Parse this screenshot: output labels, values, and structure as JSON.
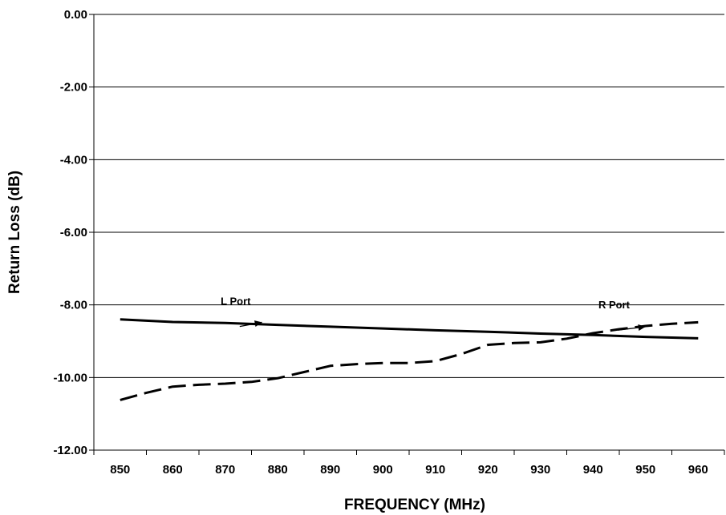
{
  "chart_data": {
    "type": "line",
    "title": "",
    "xlabel": "FREQUENCY (MHz)",
    "ylabel": "Return Loss (dB)",
    "xlim": [
      845,
      965
    ],
    "ylim": [
      -12,
      0
    ],
    "grid": "horizontal",
    "x_ticks": [
      "850",
      "860",
      "870",
      "880",
      "890",
      "900",
      "910",
      "920",
      "930",
      "940",
      "950",
      "960"
    ],
    "y_ticks": [
      "0.00",
      "-2.00",
      "-4.00",
      "-6.00",
      "-8.00",
      "-10.00",
      "-12.00"
    ],
    "series": [
      {
        "name": "L Port",
        "style": "solid",
        "color": "#000000",
        "x": [
          850,
          860,
          870,
          880,
          890,
          900,
          910,
          920,
          930,
          940,
          950,
          960
        ],
        "y": [
          -8.4,
          -8.47,
          -8.5,
          -8.55,
          -8.6,
          -8.65,
          -8.7,
          -8.74,
          -8.79,
          -8.83,
          -8.88,
          -8.92
        ]
      },
      {
        "name": "R Port",
        "style": "dashed",
        "color": "#000000",
        "x": [
          850,
          855,
          860,
          865,
          870,
          875,
          880,
          885,
          890,
          895,
          900,
          905,
          910,
          915,
          920,
          925,
          930,
          935,
          940,
          945,
          950,
          955,
          960
        ],
        "y": [
          -10.62,
          -10.42,
          -10.25,
          -10.2,
          -10.17,
          -10.12,
          -10.02,
          -9.85,
          -9.68,
          -9.63,
          -9.6,
          -9.6,
          -9.55,
          -9.35,
          -9.1,
          -9.05,
          -9.03,
          -8.93,
          -8.78,
          -8.67,
          -8.58,
          -8.52,
          -8.48
        ]
      }
    ],
    "annotations": [
      {
        "text": "L Port",
        "x": 872,
        "y": -8.0,
        "arrow_to": [
          877,
          -8.48
        ]
      },
      {
        "text": "R Port",
        "x": 944,
        "y": -8.1,
        "arrow_to": [
          950,
          -8.6
        ]
      }
    ]
  }
}
